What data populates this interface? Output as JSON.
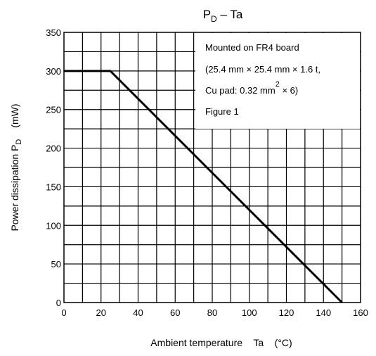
{
  "chart_data": {
    "type": "line",
    "title": {
      "main": "P",
      "sub": "D",
      "rest": " – Ta"
    },
    "xlabel": "Ambient temperature    Ta    (°C)",
    "ylabel": {
      "text": "Power dissipation    P",
      "sub": "D",
      "unit": "(mW)"
    },
    "xlim": [
      0,
      160
    ],
    "ylim": [
      0,
      350
    ],
    "x_ticks": [
      "0",
      "20",
      "40",
      "60",
      "80",
      "100",
      "120",
      "140",
      "160"
    ],
    "y_ticks": [
      "0",
      "50",
      "100",
      "150",
      "200",
      "250",
      "300",
      "350"
    ],
    "x_grid_step": 10,
    "y_grid_step": 25,
    "grid": true,
    "series": [
      {
        "x": [
          0,
          25,
          150
        ],
        "y": [
          300,
          300,
          0
        ]
      }
    ],
    "annotation": {
      "line1": "Mounted on FR4 board",
      "line2": "(25.4 mm × 25.4 mm × 1.6 t,",
      "line3_pre": "Cu pad: 0.32 mm",
      "line3_sup": "2",
      "line3_post": " × 6)",
      "line4": "Figure 1",
      "placement": "top-right"
    }
  }
}
